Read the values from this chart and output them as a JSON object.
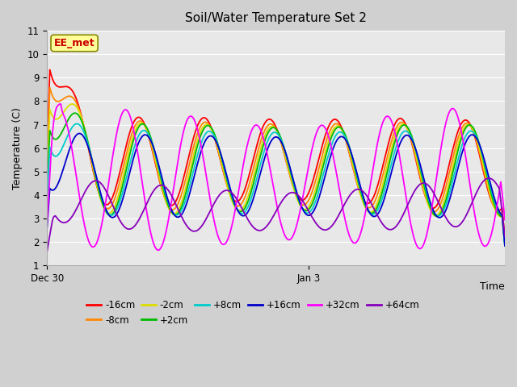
{
  "title": "Soil/Water Temperature Set 2",
  "ylabel": "Temperature (C)",
  "xlabel": "Time",
  "ylim": [
    1.0,
    11.0
  ],
  "yticks": [
    1.0,
    2.0,
    3.0,
    4.0,
    5.0,
    6.0,
    7.0,
    8.0,
    9.0,
    10.0,
    11.0
  ],
  "fig_bg_color": "#d0d0d0",
  "plot_bg_color": "#e8e8e8",
  "series_colors": {
    "-16cm": "#ff0000",
    "-8cm": "#ff8800",
    "-2cm": "#dddd00",
    "+2cm": "#00bb00",
    "+8cm": "#00cccc",
    "+16cm": "#0000cc",
    "+32cm": "#ff00ff",
    "+64cm": "#8800bb"
  },
  "xstart_label": "Dec 30",
  "xmid_label": "Jan 3",
  "annotation_text": "EE_met",
  "annotation_bg": "#ffff99",
  "annotation_border": "#888800",
  "annotation_text_color": "#cc0000"
}
